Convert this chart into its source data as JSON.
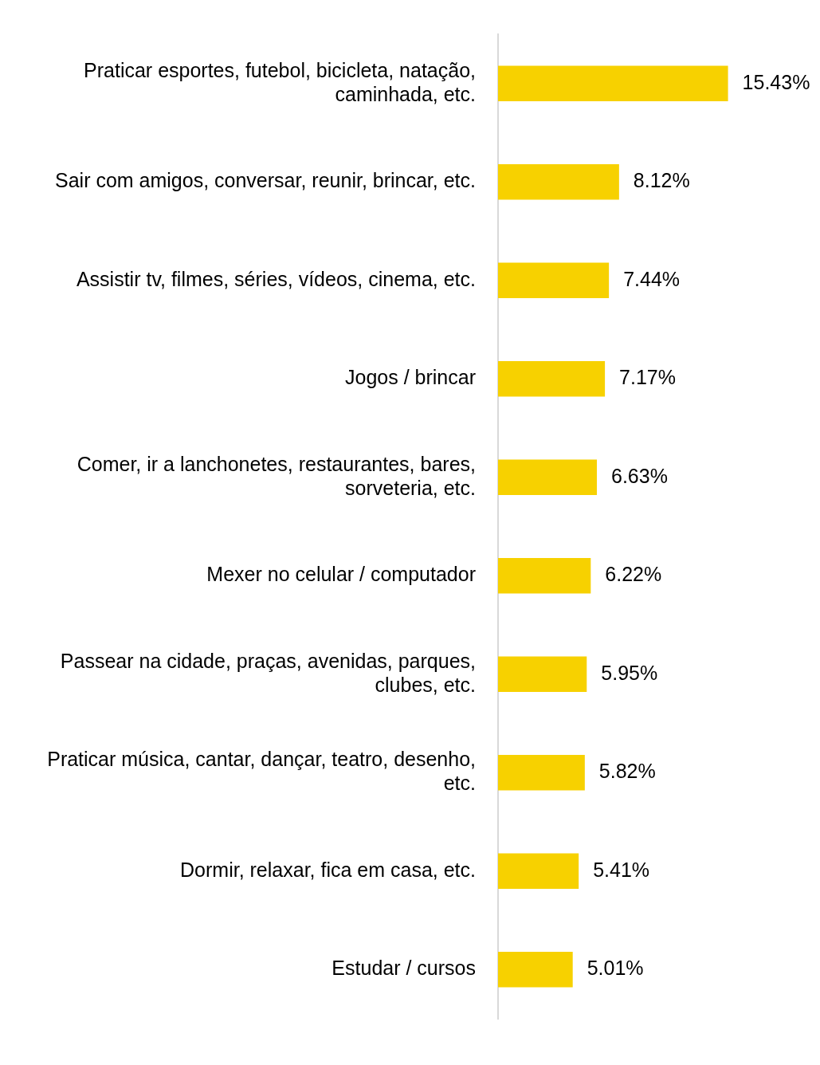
{
  "chart_data": {
    "type": "bar",
    "orientation": "horizontal",
    "legend": false,
    "categories": [
      "Praticar esportes, futebol, bicicleta, natação, caminhada, etc.",
      "Sair com amigos, conversar, reunir, brincar, etc.",
      "Assistir tv, filmes, séries, vídeos, cinema, etc.",
      "Jogos / brincar",
      "Comer, ir a lanchonetes, restaurantes, bares, sorveteria, etc.",
      "Mexer no celular / computador",
      "Passear na cidade, praças, avenidas, parques, clubes, etc.",
      "Praticar música, cantar, dançar, teatro, desenho, etc.",
      "Dormir, relaxar, fica em casa, etc.",
      "Estudar / cursos"
    ],
    "values": [
      15.43,
      8.12,
      7.44,
      7.17,
      6.63,
      6.22,
      5.95,
      5.82,
      5.41,
      5.01
    ],
    "value_labels": [
      "15.43%",
      "8.12%",
      "7.44%",
      "7.17%",
      "6.63%",
      "6.22%",
      "5.95%",
      "5.82%",
      "5.41%",
      "5.01%"
    ],
    "color": "#f7d100"
  }
}
